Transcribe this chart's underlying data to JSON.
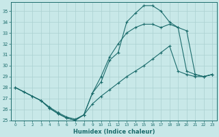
{
  "xlabel": "Humidex (Indice chaleur)",
  "xlim": [
    -0.5,
    23.5
  ],
  "ylim": [
    25,
    35.8
  ],
  "yticks": [
    25,
    26,
    27,
    28,
    29,
    30,
    31,
    32,
    33,
    34,
    35
  ],
  "xticks": [
    0,
    1,
    2,
    3,
    4,
    5,
    6,
    7,
    8,
    9,
    10,
    11,
    12,
    13,
    14,
    15,
    16,
    17,
    18,
    19,
    20,
    21,
    22,
    23
  ],
  "bg_color": "#c8e8e8",
  "grid_color": "#aad0d0",
  "line_color": "#1a6b6b",
  "curve1_x": [
    0,
    1,
    2,
    3,
    4,
    5,
    6,
    7,
    8,
    9,
    10,
    11,
    12,
    13,
    14,
    15,
    16,
    17,
    18,
    19,
    20,
    21,
    22,
    23
  ],
  "curve1_y": [
    28.0,
    27.6,
    27.2,
    26.8,
    26.1,
    25.6,
    25.2,
    25.0,
    25.5,
    27.5,
    28.5,
    30.5,
    31.2,
    34.0,
    34.8,
    35.5,
    35.5,
    35.0,
    34.0,
    33.5,
    29.5,
    29.2,
    29.0,
    29.2
  ],
  "curve2_x": [
    0,
    3,
    4,
    5,
    6,
    7,
    8,
    9,
    10,
    11,
    12,
    13,
    14,
    15,
    16,
    17,
    18,
    19,
    20,
    21,
    22,
    23
  ],
  "curve2_y": [
    28.0,
    26.8,
    26.1,
    25.6,
    25.2,
    25.0,
    25.5,
    27.5,
    29.0,
    30.8,
    32.0,
    33.0,
    33.5,
    33.8,
    33.8,
    33.5,
    33.8,
    33.5,
    33.2,
    29.2,
    29.0,
    29.2
  ],
  "curve3_x": [
    0,
    1,
    2,
    3,
    4,
    5,
    6,
    7,
    8,
    9,
    10,
    11,
    12,
    13,
    14,
    15,
    16,
    17,
    18,
    19,
    20,
    21,
    22,
    23
  ],
  "curve3_y": [
    28.0,
    27.6,
    27.2,
    26.8,
    26.2,
    25.7,
    25.3,
    25.1,
    25.5,
    26.5,
    27.2,
    27.8,
    28.4,
    29.0,
    29.5,
    30.0,
    30.6,
    31.2,
    31.8,
    29.5,
    29.2,
    29.0,
    29.0,
    29.2
  ]
}
